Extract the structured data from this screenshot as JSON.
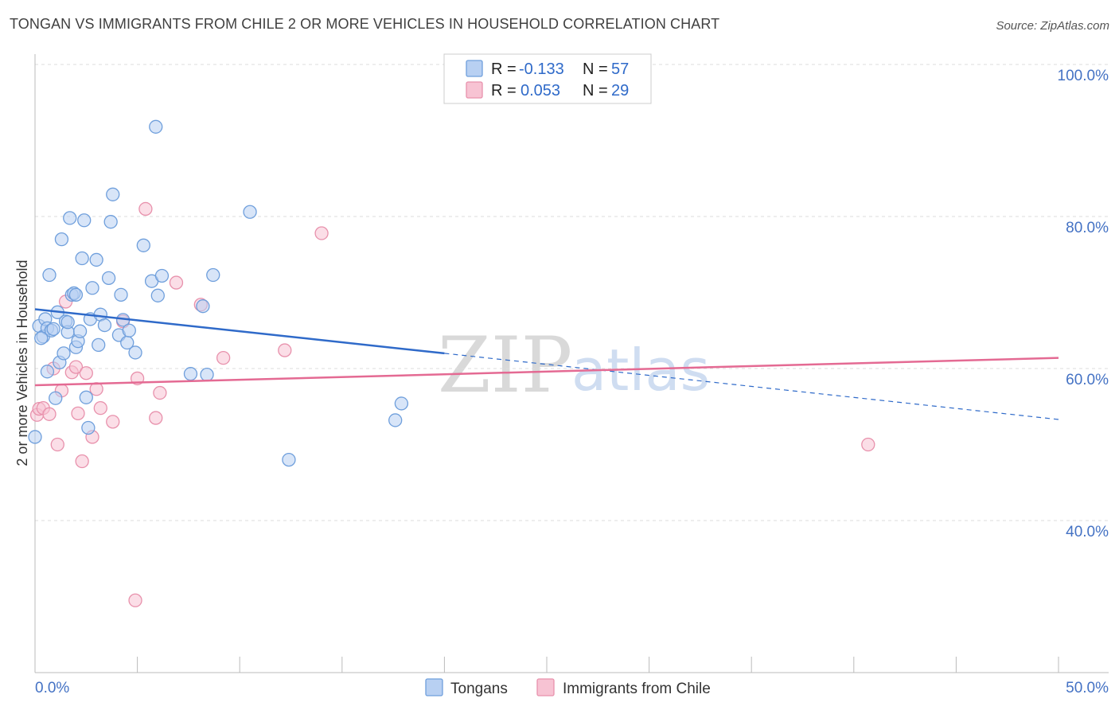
{
  "title": "TONGAN VS IMMIGRANTS FROM CHILE 2 OR MORE VEHICLES IN HOUSEHOLD CORRELATION CHART",
  "source": "Source: ZipAtlas.com",
  "watermark": {
    "zip": "ZIP",
    "atlas": "atlas"
  },
  "colors": {
    "tongans_fill": "#b8d0f2",
    "tongans_stroke": "#6f9fdc",
    "tongans_line": "#2f6ac9",
    "chile_fill": "#f7c3d3",
    "chile_stroke": "#e891ac",
    "chile_line": "#e46a93",
    "grid": "#dddddd",
    "axis_text": "#4472c4"
  },
  "legend": {
    "rows": [
      {
        "r_label": "R =",
        "r_value": "-0.133",
        "n_label": "N =",
        "n_value": "57"
      },
      {
        "r_label": "R =",
        "r_value": "0.053",
        "n_label": "N =",
        "n_value": "29"
      }
    ]
  },
  "bottom_legend": [
    "Tongans",
    "Immigrants from Chile"
  ],
  "chart_data": {
    "type": "scatter",
    "title": "TONGAN VS IMMIGRANTS FROM CHILE 2 OR MORE VEHICLES IN HOUSEHOLD CORRELATION CHART",
    "xlabel": "",
    "ylabel": "2 or more Vehicles in Household",
    "xlim": [
      0,
      50
    ],
    "ylim": [
      20,
      102
    ],
    "x_tick_labels": [
      "0.0%",
      "50.0%"
    ],
    "y_ticks": [
      40,
      60,
      80,
      100
    ],
    "y_tick_labels": [
      "40.0%",
      "60.0%",
      "80.0%",
      "100.0%"
    ],
    "grid": true,
    "series": [
      {
        "name": "Tongans",
        "points": [
          [
            0.0,
            51.0
          ],
          [
            0.2,
            65.6
          ],
          [
            0.4,
            64.2
          ],
          [
            0.5,
            66.5
          ],
          [
            0.6,
            59.6
          ],
          [
            0.6,
            65.3
          ],
          [
            0.7,
            72.3
          ],
          [
            0.8,
            65.0
          ],
          [
            0.9,
            65.2
          ],
          [
            1.0,
            56.1
          ],
          [
            1.1,
            67.4
          ],
          [
            1.2,
            60.8
          ],
          [
            1.3,
            77.0
          ],
          [
            1.4,
            62.0
          ],
          [
            1.5,
            66.2
          ],
          [
            1.6,
            64.8
          ],
          [
            1.7,
            79.8
          ],
          [
            1.8,
            69.7
          ],
          [
            1.9,
            69.9
          ],
          [
            2.0,
            62.8
          ],
          [
            2.1,
            63.6
          ],
          [
            2.2,
            64.9
          ],
          [
            2.3,
            74.5
          ],
          [
            2.4,
            79.5
          ],
          [
            2.5,
            56.2
          ],
          [
            2.6,
            52.2
          ],
          [
            2.7,
            66.5
          ],
          [
            2.8,
            70.6
          ],
          [
            3.0,
            74.3
          ],
          [
            3.1,
            63.1
          ],
          [
            3.2,
            67.1
          ],
          [
            3.4,
            65.7
          ],
          [
            3.6,
            71.9
          ],
          [
            3.7,
            79.3
          ],
          [
            3.8,
            82.9
          ],
          [
            4.1,
            64.4
          ],
          [
            4.2,
            69.7
          ],
          [
            4.3,
            66.4
          ],
          [
            4.5,
            63.4
          ],
          [
            4.6,
            65.0
          ],
          [
            4.9,
            62.1
          ],
          [
            5.3,
            76.2
          ],
          [
            5.7,
            71.5
          ],
          [
            5.9,
            91.8
          ],
          [
            6.0,
            69.6
          ],
          [
            6.2,
            72.2
          ],
          [
            7.6,
            59.3
          ],
          [
            8.2,
            68.2
          ],
          [
            8.4,
            59.2
          ],
          [
            8.7,
            72.3
          ],
          [
            10.5,
            80.6
          ],
          [
            12.4,
            48.0
          ],
          [
            17.6,
            53.2
          ],
          [
            17.9,
            55.4
          ],
          [
            0.3,
            64.0
          ],
          [
            1.6,
            66.1
          ],
          [
            2.0,
            69.7
          ]
        ],
        "trend": {
          "x": [
            0,
            20
          ],
          "y": [
            67.8,
            62.0
          ],
          "dashed_extension_to": [
            50,
            53.3
          ]
        }
      },
      {
        "name": "Immigrants from Chile",
        "points": [
          [
            0.1,
            53.9
          ],
          [
            0.2,
            54.7
          ],
          [
            0.4,
            54.8
          ],
          [
            0.7,
            54.0
          ],
          [
            0.9,
            60.0
          ],
          [
            1.1,
            50.0
          ],
          [
            1.3,
            57.1
          ],
          [
            1.5,
            68.8
          ],
          [
            1.8,
            59.5
          ],
          [
            2.0,
            60.2
          ],
          [
            2.1,
            54.1
          ],
          [
            2.3,
            47.8
          ],
          [
            2.5,
            59.4
          ],
          [
            2.8,
            51.0
          ],
          [
            3.0,
            57.3
          ],
          [
            3.2,
            54.8
          ],
          [
            3.8,
            53.0
          ],
          [
            4.3,
            66.2
          ],
          [
            4.9,
            29.5
          ],
          [
            5.0,
            58.7
          ],
          [
            5.4,
            81.0
          ],
          [
            5.9,
            53.5
          ],
          [
            6.1,
            56.8
          ],
          [
            6.9,
            71.3
          ],
          [
            8.1,
            68.4
          ],
          [
            9.2,
            61.4
          ],
          [
            12.2,
            62.4
          ],
          [
            14.0,
            77.8
          ],
          [
            40.7,
            50.0
          ]
        ],
        "trend": {
          "x": [
            0,
            50
          ],
          "y": [
            57.8,
            61.4
          ]
        }
      }
    ]
  }
}
